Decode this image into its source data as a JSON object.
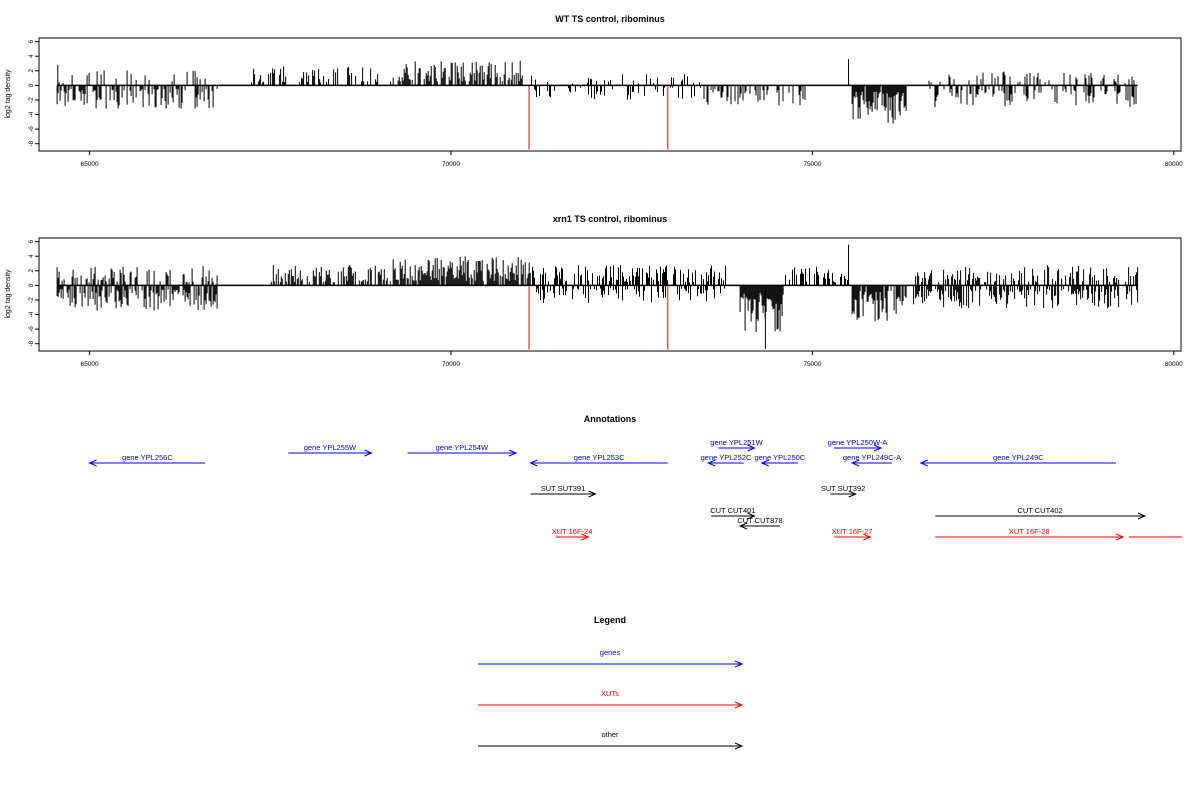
{
  "chart_data": [
    {
      "type": "bar",
      "title": "WT TS control, ribominus",
      "ylabel": "log2 tag density",
      "xlabel": "",
      "xlim": [
        64300,
        80100
      ],
      "ylim": [
        -9,
        6.5
      ],
      "xticks": [
        65000,
        70000,
        75000,
        80000
      ],
      "yticks": [
        6,
        4,
        2,
        0,
        -2,
        -4,
        -6,
        -8
      ],
      "highlight_color": "#ff0000",
      "bar_color": "#000000",
      "highlights": [
        {
          "x": 71080,
          "y": -8.8
        },
        {
          "x": 73000,
          "y": -8.8
        }
      ],
      "segments": [
        {
          "from": 64550,
          "to": 66800,
          "sign": -1,
          "amp": 3.2,
          "dens": 0.5
        },
        {
          "from": 64550,
          "to": 66800,
          "sign": 1,
          "amp": 2.2,
          "dens": 0.15
        },
        {
          "from": 67200,
          "to": 69200,
          "sign": 1,
          "amp": 2.6,
          "dens": 0.35
        },
        {
          "from": 69200,
          "to": 71000,
          "sign": 1,
          "amp": 3.4,
          "dens": 0.55
        },
        {
          "from": 71100,
          "to": 73500,
          "sign": -1,
          "amp": 2.0,
          "dens": 0.25
        },
        {
          "from": 71100,
          "to": 73500,
          "sign": 1,
          "amp": 1.6,
          "dens": 0.15
        },
        {
          "from": 73500,
          "to": 74900,
          "sign": -1,
          "amp": 2.8,
          "dens": 0.45
        },
        {
          "from": 75550,
          "to": 76300,
          "sign": -1,
          "amp": 5.5,
          "dens": 0.9
        },
        {
          "from": 76600,
          "to": 79500,
          "sign": -1,
          "amp": 3.0,
          "dens": 0.4
        },
        {
          "from": 76600,
          "to": 79500,
          "sign": 1,
          "amp": 2.2,
          "dens": 0.25
        }
      ],
      "peaks": [
        {
          "x": 64560,
          "y": 2.8
        },
        {
          "x": 75500,
          "y": 3.6
        }
      ]
    },
    {
      "type": "bar",
      "title": "xrn1 TS control, ribominus",
      "ylabel": "log2 tag density",
      "xlabel": "",
      "xlim": [
        64300,
        80100
      ],
      "ylim": [
        -9,
        6.5
      ],
      "xticks": [
        65000,
        70000,
        75000,
        80000
      ],
      "yticks": [
        6,
        4,
        2,
        0,
        -2,
        -4,
        -6,
        -8
      ],
      "highlight_color": "#ff0000",
      "bar_color": "#000000",
      "highlights": [
        {
          "x": 71080,
          "y": -8.8
        },
        {
          "x": 73000,
          "y": -8.8
        }
      ],
      "segments": [
        {
          "from": 64550,
          "to": 66800,
          "sign": -1,
          "amp": 3.5,
          "dens": 0.7
        },
        {
          "from": 64550,
          "to": 66800,
          "sign": 1,
          "amp": 2.8,
          "dens": 0.35
        },
        {
          "from": 67500,
          "to": 69200,
          "sign": 1,
          "amp": 2.8,
          "dens": 0.55
        },
        {
          "from": 69200,
          "to": 71100,
          "sign": 1,
          "amp": 4.0,
          "dens": 0.9
        },
        {
          "from": 71100,
          "to": 73800,
          "sign": 1,
          "amp": 2.8,
          "dens": 0.5
        },
        {
          "from": 71100,
          "to": 73800,
          "sign": -1,
          "amp": 2.5,
          "dens": 0.4
        },
        {
          "from": 74000,
          "to": 74600,
          "sign": -1,
          "amp": 6.5,
          "dens": 0.95
        },
        {
          "from": 74600,
          "to": 75500,
          "sign": 1,
          "amp": 2.6,
          "dens": 0.5
        },
        {
          "from": 75550,
          "to": 76300,
          "sign": -1,
          "amp": 5.0,
          "dens": 0.9
        },
        {
          "from": 76400,
          "to": 79500,
          "sign": -1,
          "amp": 3.2,
          "dens": 0.6
        },
        {
          "from": 76400,
          "to": 79500,
          "sign": 1,
          "amp": 2.8,
          "dens": 0.45
        }
      ],
      "peaks": [
        {
          "x": 75500,
          "y": 5.6
        },
        {
          "x": 74350,
          "y": -8.7
        }
      ]
    }
  ],
  "annotations": {
    "title": "Annotations",
    "genes_color": "#0000ff",
    "xut_color": "#ff0000",
    "other_color": "#000000",
    "genes": [
      {
        "label": "gene YPL256C",
        "start": 65000,
        "end": 66600,
        "dir": -1,
        "row": 2
      },
      {
        "label": "gene YPL255W",
        "start": 67750,
        "end": 68900,
        "dir": 1,
        "row": 1
      },
      {
        "label": "gene YPL254W",
        "start": 69400,
        "end": 70900,
        "dir": 1,
        "row": 1
      },
      {
        "label": "gene YPL253C",
        "start": 71100,
        "end": 73000,
        "dir": -1,
        "row": 2
      },
      {
        "label": "gene YPL251W",
        "start": 73700,
        "end": 74200,
        "dir": 1,
        "row": 0
      },
      {
        "label": "gene YPL252C",
        "start": 73560,
        "end": 74050,
        "dir": -1,
        "row": 2
      },
      {
        "label": "gene YPL250C",
        "start": 74300,
        "end": 74800,
        "dir": -1,
        "row": 2
      },
      {
        "label": "gene YPL250W-A",
        "start": 75300,
        "end": 75950,
        "dir": 1,
        "row": 0
      },
      {
        "label": "gene YPL249C-A",
        "start": 75550,
        "end": 76100,
        "dir": -1,
        "row": 2
      },
      {
        "label": "gene YPL249C",
        "start": 76500,
        "end": 79200,
        "dir": -1,
        "row": 2
      }
    ],
    "others": [
      {
        "label": "SUT SUT391",
        "start": 71100,
        "end": 72000,
        "dir": 1,
        "row": 3
      },
      {
        "label": "SUT SUT392",
        "start": 75250,
        "end": 75600,
        "dir": 1,
        "row": 3
      },
      {
        "label": "CUT CUT401",
        "start": 73600,
        "end": 74200,
        "dir": 1,
        "row": 4
      },
      {
        "label": "CUT CUT878",
        "start": 74000,
        "end": 74550,
        "dir": -1,
        "row": 5
      },
      {
        "label": "CUT CUT402",
        "start": 76700,
        "end": 79600,
        "dir": 1,
        "row": 4
      }
    ],
    "xuts": [
      {
        "label": "XUT 16F-24",
        "start": 71450,
        "end": 71900,
        "dir": 1,
        "row": 6
      },
      {
        "label": "XUT 16F-27",
        "start": 75300,
        "end": 75800,
        "dir": 1,
        "row": 6
      },
      {
        "label": "XUT 16F-28",
        "start": 76700,
        "end": 79300,
        "dir": 1,
        "row": 6
      },
      {
        "label": "",
        "start": 79380,
        "end": 80200,
        "dir": 0,
        "row": 6
      }
    ]
  },
  "legend": {
    "title": "Legend",
    "items": [
      {
        "label": "genes",
        "color": "#0000ff"
      },
      {
        "label": "XUTs",
        "color": "#ff0000"
      },
      {
        "label": "other",
        "color": "#000000"
      }
    ]
  }
}
